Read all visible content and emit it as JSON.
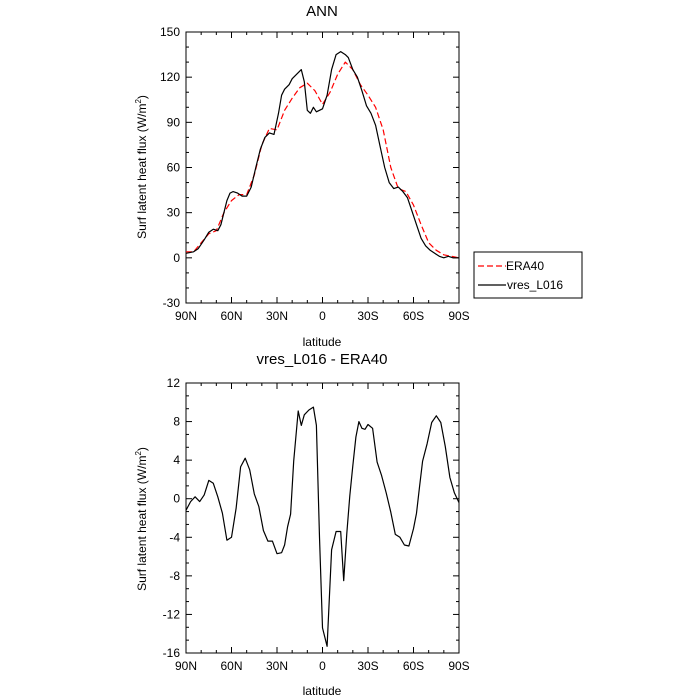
{
  "chart_data": [
    {
      "type": "line",
      "title": "ANN",
      "xlabel": "latitude",
      "ylabel": "Surf latent heat flux (W/m",
      "ylabel_sup": "2",
      "ylabel_close": ")",
      "xlim": [
        90,
        -90
      ],
      "ylim": [
        -30,
        150
      ],
      "xticks": [
        90,
        60,
        30,
        0,
        -30,
        -60,
        -90
      ],
      "xtick_labels": [
        "90N",
        "60N",
        "30N",
        "0",
        "30S",
        "60S",
        "90S"
      ],
      "yticks": [
        -30,
        0,
        30,
        60,
        90,
        120,
        150
      ],
      "ytick_labels": [
        "-30",
        "0",
        "30",
        "60",
        "90",
        "120",
        "150"
      ],
      "legend": "outside-right",
      "series": [
        {
          "name": "ERA40",
          "color": "#ff0000",
          "style": "dashed",
          "x": [
            90,
            85,
            80,
            75,
            70,
            65,
            60,
            55,
            50,
            45,
            40,
            35,
            30,
            25,
            20,
            15,
            10,
            5,
            0,
            -5,
            -10,
            -15,
            -20,
            -25,
            -30,
            -35,
            -40,
            -45,
            -50,
            -55,
            -60,
            -65,
            -70,
            -75,
            -80,
            -85,
            -90
          ],
          "values": [
            4,
            4,
            10,
            16,
            18,
            30,
            38,
            42,
            42,
            55,
            75,
            86,
            85,
            98,
            106,
            113,
            116,
            111,
            102,
            110,
            122,
            130,
            125,
            115,
            108,
            100,
            85,
            60,
            46,
            44,
            35,
            22,
            10,
            5,
            2,
            1,
            0
          ]
        },
        {
          "name": "vres_L016",
          "color": "#000000",
          "style": "solid",
          "x": [
            90,
            85,
            82,
            78,
            75,
            72,
            69,
            67,
            65,
            63,
            61,
            59,
            56,
            53,
            50,
            47,
            44,
            41,
            38,
            35,
            32,
            29,
            27,
            25,
            22,
            20,
            18,
            16,
            14,
            12,
            10,
            8,
            6,
            4,
            2,
            0,
            -3,
            -6,
            -9,
            -12,
            -15,
            -17,
            -20,
            -23,
            -26,
            -29,
            -32,
            -35,
            -38,
            -41,
            -44,
            -47,
            -50,
            -53,
            -56,
            -59,
            -62,
            -65,
            -68,
            -71,
            -74,
            -77,
            -80,
            -83,
            -86,
            -90
          ],
          "values": [
            3,
            4,
            6,
            12,
            17,
            19,
            18,
            22,
            30,
            38,
            43,
            44,
            43,
            41,
            41,
            47,
            60,
            72,
            80,
            83,
            82,
            96,
            108,
            112,
            115,
            119,
            121,
            123,
            125,
            117,
            98,
            96,
            100,
            97,
            98,
            99,
            108,
            125,
            135,
            137,
            135,
            133,
            125,
            120,
            111,
            101,
            96,
            88,
            74,
            60,
            50,
            46,
            47,
            44,
            40,
            31,
            22,
            13,
            8,
            5,
            3,
            1,
            0,
            1,
            0,
            0
          ]
        }
      ]
    },
    {
      "type": "line",
      "title": "vres_L016 - ERA40",
      "xlabel": "latitude",
      "ylabel": "Surf latent heat flux (W/m",
      "ylabel_sup": "2",
      "ylabel_close": ")",
      "xlim": [
        90,
        -90
      ],
      "ylim": [
        -16,
        12
      ],
      "xticks": [
        90,
        60,
        30,
        0,
        -30,
        -60,
        -90
      ],
      "xtick_labels": [
        "90N",
        "60N",
        "30N",
        "0",
        "30S",
        "60S",
        "90S"
      ],
      "yticks": [
        -16,
        -12,
        -8,
        -4,
        0,
        4,
        8,
        12
      ],
      "ytick_labels": [
        "-16",
        "-12",
        "-8",
        "-4",
        "0",
        "4",
        "8",
        "12"
      ],
      "series": [
        {
          "name": "",
          "color": "#000000",
          "style": "solid",
          "x": [
            90,
            87,
            84,
            81,
            78,
            75,
            72,
            69,
            66,
            63,
            60,
            57,
            54,
            51,
            48,
            45,
            42,
            39,
            36,
            33,
            30,
            27,
            25,
            23,
            21,
            19,
            16,
            14,
            12,
            9,
            6,
            4,
            2,
            0,
            -3,
            -6,
            -9,
            -12,
            -14,
            -16,
            -18,
            -20,
            -22,
            -24,
            -26,
            -28,
            -30,
            -33,
            -36,
            -39,
            -42,
            -45,
            -48,
            -51,
            -54,
            -57,
            -60,
            -62,
            -64,
            -66,
            -69,
            -72,
            -75,
            -78,
            -81,
            -84,
            -87,
            -90
          ],
          "values": [
            -1.2,
            -0.3,
            0.2,
            -0.3,
            0.4,
            1.9,
            1.6,
            0.2,
            -1.5,
            -4.3,
            -4.0,
            -1.0,
            3.3,
            4.2,
            3.0,
            0.5,
            -0.8,
            -3.3,
            -4.4,
            -4.4,
            -5.7,
            -5.6,
            -4.8,
            -2.9,
            -1.6,
            3.9,
            9.1,
            7.6,
            8.7,
            9.2,
            9.5,
            7.6,
            -4.0,
            -13.4,
            -15.3,
            -5.3,
            -3.4,
            -3.4,
            -8.5,
            -3.6,
            0.3,
            3.4,
            6.4,
            8.0,
            7.3,
            7.2,
            7.7,
            7.3,
            3.8,
            2.4,
            0.6,
            -1.4,
            -3.7,
            -4.0,
            -4.8,
            -4.9,
            -3.1,
            -1.5,
            1.3,
            3.9,
            5.7,
            7.9,
            8.6,
            7.9,
            5.4,
            2.2,
            0.6,
            -0.4
          ]
        }
      ]
    }
  ]
}
